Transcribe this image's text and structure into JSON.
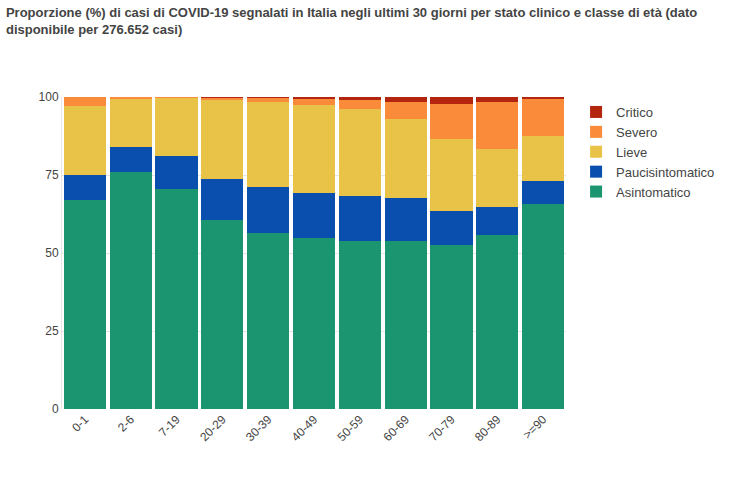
{
  "chart_data": {
    "type": "bar",
    "title": "Proporzione (%) di casi di COVID-19 segnalati in Italia negli ultimi 30 giorni per stato clinico e classe di età (dato disponibile per 276.652 casi)",
    "categories": [
      "0-1",
      "2-6",
      "7-19",
      "20-29",
      "30-39",
      "40-49",
      "50-59",
      "60-69",
      "70-79",
      "80-89",
      ">=90"
    ],
    "series": [
      {
        "name": "Asintomatico",
        "color": "#1b9470",
        "values": [
          67,
          76,
          70.5,
          60.5,
          56.5,
          54.8,
          54,
          54,
          52.5,
          55.8,
          65.8
        ]
      },
      {
        "name": "Paucisintomatico",
        "color": "#0a4fae",
        "values": [
          8,
          8,
          10.5,
          13.3,
          14.5,
          14.4,
          14.3,
          13.5,
          11,
          8.9,
          7.2
        ]
      },
      {
        "name": "Lieve",
        "color": "#e8c347",
        "values": [
          22,
          15.5,
          18.8,
          25.4,
          27.5,
          28.3,
          27.7,
          25.3,
          23.2,
          18.5,
          14.5
        ]
      },
      {
        "name": "Severo",
        "color": "#f98b3a",
        "values": [
          3,
          0.5,
          0.2,
          0.7,
          1.3,
          2,
          3.2,
          5.5,
          11.1,
          15.3,
          11.9
        ]
      },
      {
        "name": "Critico",
        "color": "#b3250e",
        "values": [
          0,
          0,
          0,
          0.1,
          0.2,
          0.5,
          0.8,
          1.7,
          2.2,
          1.5,
          0.6
        ]
      }
    ],
    "stacked": true,
    "ylim": [
      0,
      100
    ],
    "yticks": [
      0,
      25,
      50,
      75,
      100
    ],
    "grid": true,
    "legend": "top-right"
  }
}
